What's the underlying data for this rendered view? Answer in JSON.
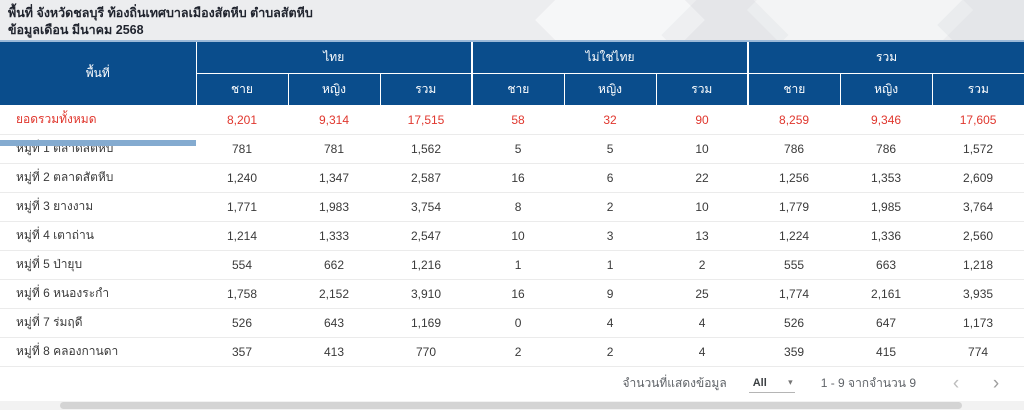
{
  "page": {
    "title": "พื้นที่ จังหวัดชลบุรี ท้องถิ่นเทศบาลเมืองสัตหีบ ตำบลสัตหีบ",
    "subtitle": "ข้อมูลเดือน มีนาคม 2568"
  },
  "table": {
    "area_header": "พื้นที่",
    "groups": [
      {
        "label": "ไทย"
      },
      {
        "label": "ไม่ใช่ไทย"
      },
      {
        "label": "รวม"
      }
    ],
    "sub_headers": [
      "ชาย",
      "หญิง",
      "รวม"
    ],
    "rows": [
      {
        "area": "ยอดรวมทั้งหมด",
        "highlight": true,
        "values": [
          "8,201",
          "9,314",
          "17,515",
          "58",
          "32",
          "90",
          "8,259",
          "9,346",
          "17,605"
        ]
      },
      {
        "area": "หมู่ที่ 1 ตลาดสัตหีบ",
        "highlight": false,
        "values": [
          "781",
          "781",
          "1,562",
          "5",
          "5",
          "10",
          "786",
          "786",
          "1,572"
        ]
      },
      {
        "area": "หมู่ที่ 2 ตลาดสัตหีบ",
        "highlight": false,
        "values": [
          "1,240",
          "1,347",
          "2,587",
          "16",
          "6",
          "22",
          "1,256",
          "1,353",
          "2,609"
        ]
      },
      {
        "area": "หมู่ที่ 3 ยางงาม",
        "highlight": false,
        "values": [
          "1,771",
          "1,983",
          "3,754",
          "8",
          "2",
          "10",
          "1,779",
          "1,985",
          "3,764"
        ]
      },
      {
        "area": "หมู่ที่ 4 เตาถ่าน",
        "highlight": false,
        "values": [
          "1,214",
          "1,333",
          "2,547",
          "10",
          "3",
          "13",
          "1,224",
          "1,336",
          "2,560"
        ]
      },
      {
        "area": "หมู่ที่ 5 ป่ายุบ",
        "highlight": false,
        "values": [
          "554",
          "662",
          "1,216",
          "1",
          "1",
          "2",
          "555",
          "663",
          "1,218"
        ]
      },
      {
        "area": "หมู่ที่ 6 หนองระกำ",
        "highlight": false,
        "values": [
          "1,758",
          "2,152",
          "3,910",
          "16",
          "9",
          "25",
          "1,774",
          "2,161",
          "3,935"
        ]
      },
      {
        "area": "หมู่ที่ 7 ร่มฤดี",
        "highlight": false,
        "values": [
          "526",
          "643",
          "1,169",
          "0",
          "4",
          "4",
          "526",
          "647",
          "1,173"
        ]
      },
      {
        "area": "หมู่ที่ 8 คลองกานดา",
        "highlight": false,
        "values": [
          "357",
          "413",
          "770",
          "2",
          "2",
          "4",
          "359",
          "415",
          "774"
        ]
      }
    ]
  },
  "footer": {
    "page_size_label": "จำนวนที่แสดงข้อมูล",
    "page_size_value": "All",
    "caret_icon": "▾",
    "range_text": "1 - 9 จากจำนวน 9",
    "prev_icon": "‹",
    "next_icon": "›"
  },
  "colors": {
    "header_blue": "#0a4d8c",
    "highlight_red": "#e0372e",
    "scroll_thumb_blue": "#84abd0"
  }
}
